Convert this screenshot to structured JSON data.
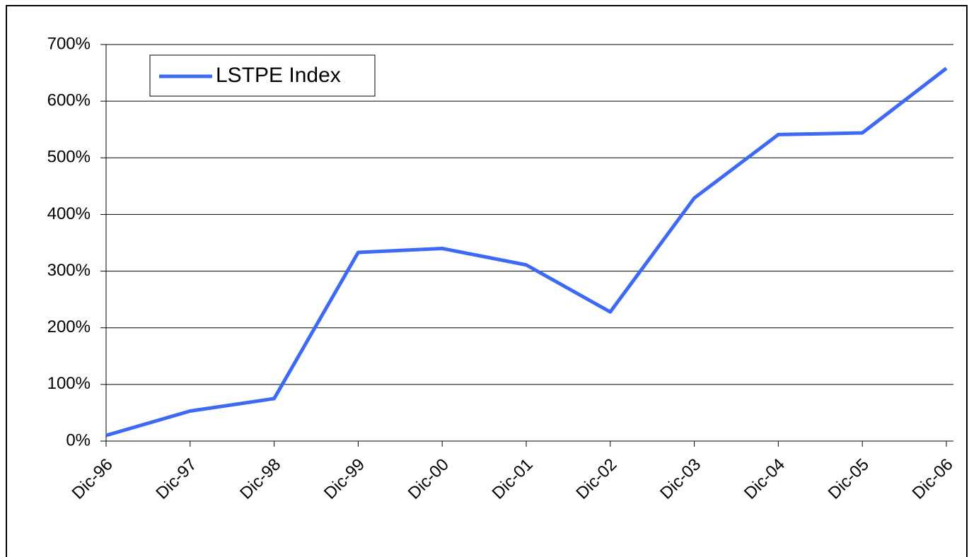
{
  "chart_data": {
    "type": "line",
    "categories": [
      "Dic-96",
      "Dic-97",
      "Dic-98",
      "Dic-99",
      "Dic-00",
      "Dic-01",
      "Dic-02",
      "Dic-03",
      "Dic-04",
      "Dic-05",
      "Dic-06"
    ],
    "series": [
      {
        "name": "LSTPE Index",
        "color": "#3d6af5",
        "values": [
          10,
          53,
          75,
          333,
          340,
          311,
          228,
          429,
          541,
          544,
          658
        ]
      }
    ],
    "ylim": [
      0,
      700
    ],
    "yticks": [
      {
        "value": 0,
        "label": "0%"
      },
      {
        "value": 100,
        "label": "100%"
      },
      {
        "value": 200,
        "label": "200%"
      },
      {
        "value": 300,
        "label": "300%"
      },
      {
        "value": 400,
        "label": "400%"
      },
      {
        "value": 500,
        "label": "500%"
      },
      {
        "value": 600,
        "label": "600%"
      },
      {
        "value": 700,
        "label": "700%"
      }
    ],
    "grid": true,
    "legend": "top-left"
  }
}
